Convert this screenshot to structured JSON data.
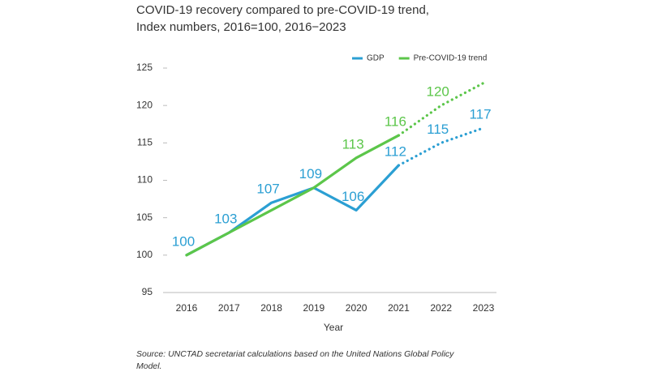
{
  "chart_data": {
    "type": "line",
    "title": [
      "COVID-19 recovery compared to pre-COVID-19 trend,",
      "Index numbers, 2016=100, 2016−2023"
    ],
    "x_label": "Year",
    "source": [
      "Source: UNCTAD secretariat calculations based on the United Nations Global Policy",
      "Model."
    ],
    "categories": [
      "2016",
      "2017",
      "2018",
      "2019",
      "2020",
      "2021",
      "2022",
      "2023"
    ],
    "projection_start": "2021",
    "series": [
      {
        "name": "GDP",
        "color": "#2b9fd3",
        "values": [
          100,
          103,
          107,
          109,
          106,
          112,
          115,
          117
        ],
        "show_labels": [
          true,
          true,
          true,
          true,
          true,
          true,
          true,
          true
        ]
      },
      {
        "name": "Pre-COVID-19 trend",
        "color": "#5cc64a",
        "values": [
          100,
          103,
          106,
          109,
          113,
          116,
          120,
          123
        ],
        "show_labels": [
          false,
          false,
          false,
          false,
          true,
          true,
          true,
          false
        ]
      }
    ],
    "ylim": [
      95,
      125
    ],
    "yticks": [
      95,
      100,
      105,
      110,
      115,
      120,
      125
    ],
    "legend": "top-right"
  }
}
